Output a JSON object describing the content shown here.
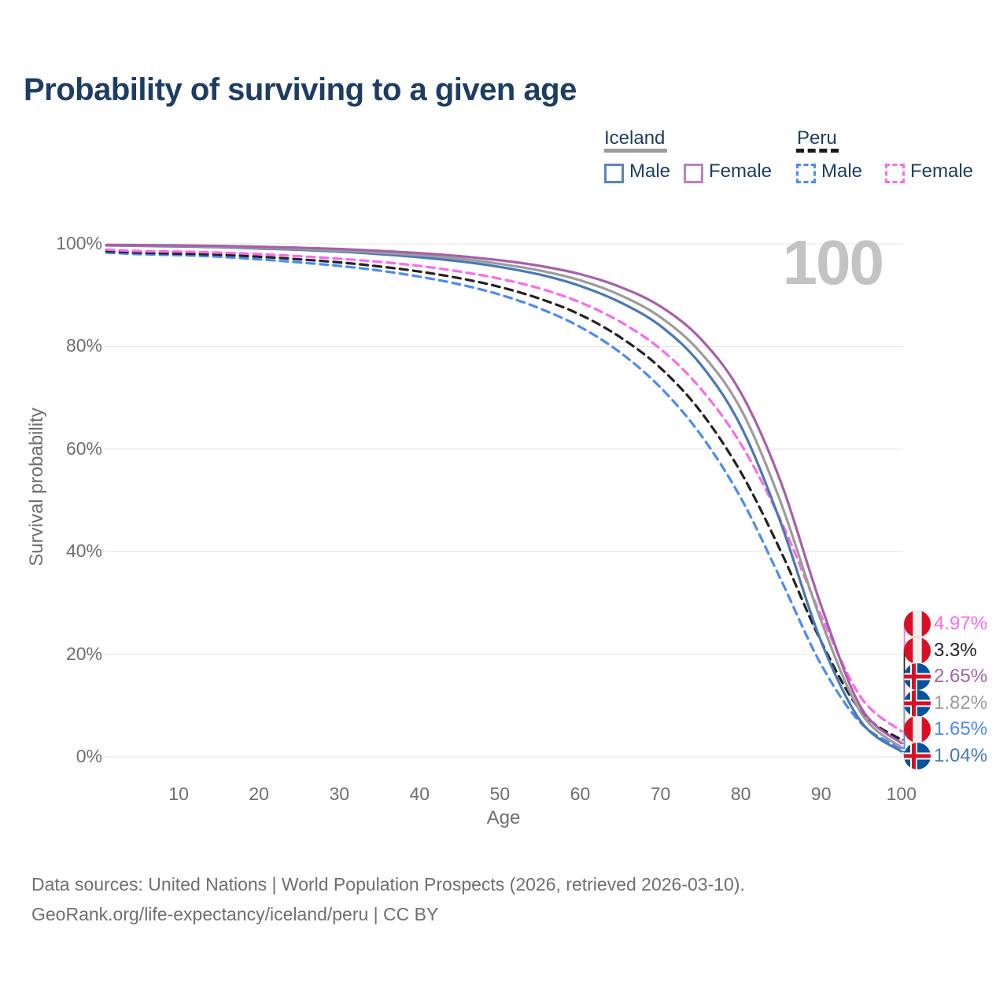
{
  "title": "Probability of surviving to a given age",
  "watermark": "100",
  "legend": {
    "iceland": {
      "label": "Iceland",
      "male_label": "Male",
      "female_label": "Female"
    },
    "peru": {
      "label": "Peru",
      "male_label": "Male",
      "female_label": "Female"
    }
  },
  "colors": {
    "iceland_male": "#4879b6",
    "iceland_female": "#a85fa8",
    "iceland_both": "#9c9c9c",
    "peru_male": "#4b8af8",
    "peru_female": "#fb6ae9",
    "peru_both": "#222222",
    "title_text": "#1d3d63",
    "axis_text": "#6f6f6f",
    "grid": "#e9e9e9",
    "watermark": "#c3c3c3",
    "iceland_flag_blue": "#02529c",
    "flag_red": "#d91023",
    "flag_white": "#efefef",
    "iceland_female_swatch": "#bd7fba",
    "iceland_male_swatch": "#5b84b8"
  },
  "axes": {
    "xlabel": "Age",
    "ylabel": "Survival probability",
    "x_tick_values": [
      10,
      20,
      30,
      40,
      50,
      60,
      70,
      80,
      90,
      100
    ],
    "x_tick_labels": [
      "10",
      "20",
      "30",
      "40",
      "50",
      "60",
      "70",
      "80",
      "90",
      "100"
    ],
    "y_tick_values": [
      0,
      20,
      40,
      60,
      80,
      100
    ],
    "y_tick_labels": [
      "0%",
      "20%",
      "40%",
      "60%",
      "80%",
      "100%"
    ]
  },
  "chart_data": {
    "type": "line",
    "title": "Probability of surviving to a given age",
    "xlabel": "Age",
    "ylabel": "Survival probability",
    "xlim": [
      1,
      100
    ],
    "ylim": [
      0,
      100
    ],
    "grid": "horizontal-only",
    "legend_position": "top-right",
    "x": [
      1,
      5,
      10,
      15,
      20,
      25,
      30,
      35,
      40,
      45,
      50,
      55,
      60,
      65,
      70,
      75,
      80,
      85,
      90,
      95,
      100
    ],
    "series": [
      {
        "name": "Peru Male",
        "country": "Peru",
        "sex": "Male",
        "style": "dashed",
        "color_key": "peru_male",
        "values": [
          98.3,
          98.0,
          97.8,
          97.5,
          97.0,
          96.4,
          95.7,
          94.8,
          93.6,
          92.1,
          90.1,
          87.4,
          83.8,
          78.8,
          72.0,
          62.8,
          50.5,
          34.5,
          18.0,
          6.5,
          1.65
        ]
      },
      {
        "name": "Peru Both sexes",
        "country": "Peru",
        "sex": "Both",
        "style": "dashed",
        "color_key": "peru_both",
        "values": [
          98.6,
          98.3,
          98.1,
          97.9,
          97.5,
          97.0,
          96.4,
          95.6,
          94.6,
          93.3,
          91.6,
          89.3,
          86.2,
          81.8,
          75.8,
          67.3,
          55.5,
          40.0,
          22.5,
          8.8,
          3.3
        ]
      },
      {
        "name": "Peru Female",
        "country": "Peru",
        "sex": "Female",
        "style": "dashed",
        "color_key": "peru_female",
        "values": [
          98.9,
          98.6,
          98.5,
          98.3,
          98.0,
          97.6,
          97.1,
          96.5,
          95.7,
          94.6,
          93.2,
          91.3,
          88.6,
          84.8,
          79.5,
          71.8,
          61.0,
          46.0,
          27.5,
          11.5,
          4.97
        ]
      },
      {
        "name": "Iceland Male",
        "country": "Iceland",
        "sex": "Male",
        "style": "solid",
        "color_key": "iceland_male",
        "values": [
          99.7,
          99.62,
          99.5,
          99.35,
          99.1,
          98.85,
          98.5,
          98.0,
          97.4,
          96.6,
          95.5,
          94.0,
          91.8,
          88.6,
          84.0,
          76.5,
          64.5,
          45.5,
          22.5,
          6.8,
          1.04
        ]
      },
      {
        "name": "Iceland Both sexes",
        "country": "Iceland",
        "sex": "Both",
        "style": "solid",
        "color_key": "iceland_both",
        "values": [
          99.75,
          99.68,
          99.6,
          99.45,
          99.25,
          99.0,
          98.7,
          98.3,
          97.8,
          97.1,
          96.1,
          94.8,
          92.9,
          90.0,
          85.7,
          78.8,
          67.8,
          49.5,
          26.5,
          8.5,
          1.82
        ]
      },
      {
        "name": "Iceland Female",
        "country": "Iceland",
        "sex": "Female",
        "style": "solid",
        "color_key": "iceland_female",
        "values": [
          99.8,
          99.75,
          99.7,
          99.6,
          99.45,
          99.25,
          99.0,
          98.65,
          98.2,
          97.6,
          96.8,
          95.7,
          94.1,
          91.6,
          87.8,
          81.5,
          71.0,
          53.5,
          29.5,
          9.5,
          2.65
        ]
      }
    ],
    "end_labels": [
      {
        "text": "4.97%",
        "value": 4.97,
        "flag": "peru",
        "color_key": "peru_female",
        "series": "Peru Female"
      },
      {
        "text": "3.3%",
        "value": 3.3,
        "flag": "peru",
        "color_key": "peru_both",
        "series": "Peru Both sexes"
      },
      {
        "text": "2.65%",
        "value": 2.65,
        "flag": "iceland",
        "color_key": "iceland_female",
        "series": "Iceland Female"
      },
      {
        "text": "1.82%",
        "value": 1.82,
        "flag": "iceland",
        "color_key": "iceland_both",
        "series": "Iceland Both sexes"
      },
      {
        "text": "1.65%",
        "value": 1.65,
        "flag": "peru",
        "color_key": "peru_male",
        "series": "Peru Male"
      },
      {
        "text": "1.04%",
        "value": 1.04,
        "flag": "iceland",
        "color_key": "iceland_male",
        "series": "Iceland Male"
      }
    ],
    "annotation": "100"
  },
  "footer": {
    "line1": "Data sources: United Nations | World Population Prospects (2026, retrieved 2026-03-10).",
    "line2": "GeoRank.org/life-expectancy/iceland/peru | CC BY"
  }
}
